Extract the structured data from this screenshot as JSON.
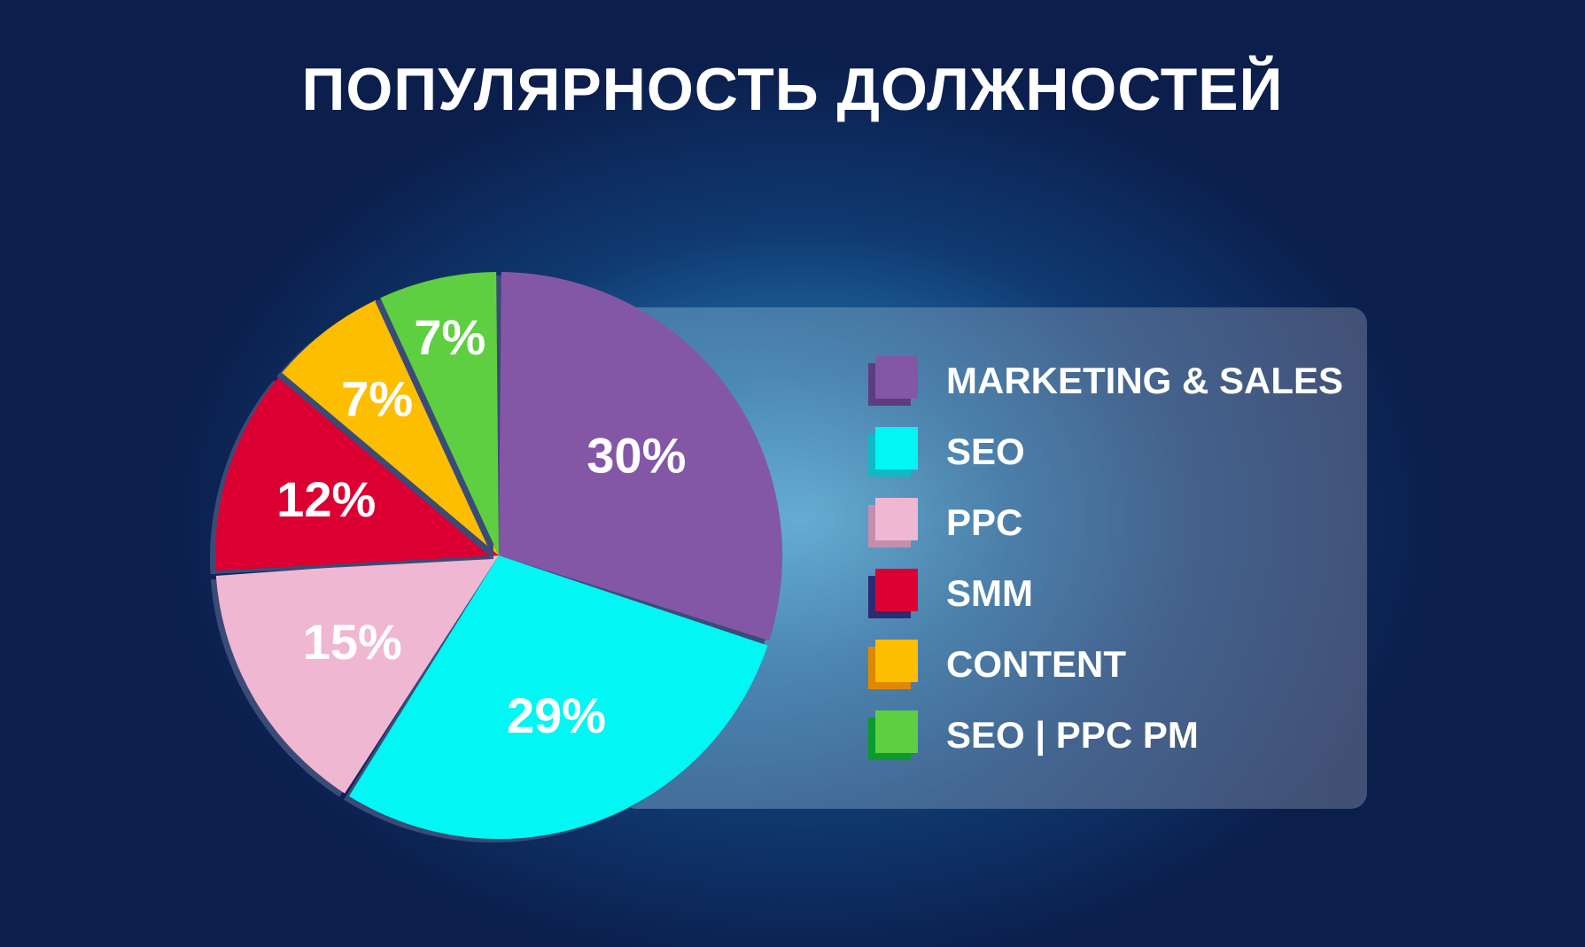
{
  "title": "ПОПУЛЯРНОСТЬ ДОЛЖНОСТЕЙ",
  "chart_data": {
    "type": "pie",
    "title": "ПОПУЛЯРНОСТЬ ДОЛЖНОСТЕЙ",
    "legend_position": "right",
    "slices": [
      {
        "name": "MARKETING & SALES",
        "value": 30,
        "label": "30%",
        "color": "#8357a6",
        "shade": "#5d3c80"
      },
      {
        "name": "SEO",
        "value": 29,
        "label": "29%",
        "color": "#00f7f4",
        "shade": "#10b9c4"
      },
      {
        "name": "PPC",
        "value": 15,
        "label": "15%",
        "color": "#f0b7d2",
        "shade": "#c48fae"
      },
      {
        "name": "SMM",
        "value": 12,
        "label": "12%",
        "color": "#dc0032",
        "shade": "#2c2b72"
      },
      {
        "name": "CONTENT",
        "value": 7,
        "label": "7%",
        "color": "#fdbe00",
        "shade": "#e08800"
      },
      {
        "name": "SEO | PPC PM",
        "value": 7,
        "label": "7%",
        "color": "#5ecf40",
        "shade": "#0c9a2c"
      }
    ]
  }
}
